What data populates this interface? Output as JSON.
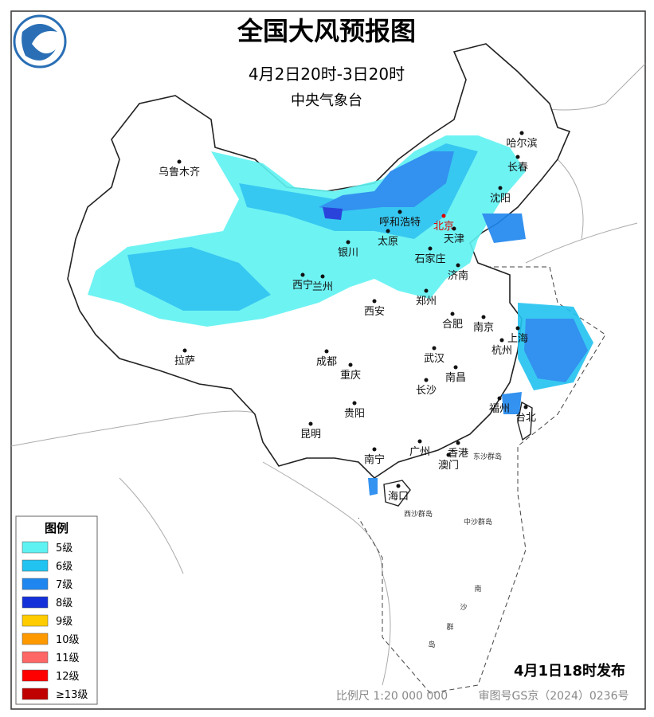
{
  "header": {
    "title": "全国大风预报图",
    "period": "4月2日20时-3日20时",
    "issuer": "中央气象台"
  },
  "cities": [
    {
      "name": "乌鲁木齐"
    },
    {
      "name": "哈尔滨"
    },
    {
      "name": "长春"
    },
    {
      "name": "沈阳"
    },
    {
      "name": "北京"
    },
    {
      "name": "呼和浩特"
    },
    {
      "name": "天津"
    },
    {
      "name": "太原"
    },
    {
      "name": "石家庄"
    },
    {
      "name": "银川"
    },
    {
      "name": "济南"
    },
    {
      "name": "西宁"
    },
    {
      "name": "兰州"
    },
    {
      "name": "郑州"
    },
    {
      "name": "西安"
    },
    {
      "name": "合肥"
    },
    {
      "name": "南京"
    },
    {
      "name": "上海"
    },
    {
      "name": "杭州"
    },
    {
      "name": "拉萨"
    },
    {
      "name": "成都"
    },
    {
      "name": "武汉"
    },
    {
      "name": "重庆"
    },
    {
      "name": "南昌"
    },
    {
      "name": "长沙"
    },
    {
      "name": "贵阳"
    },
    {
      "name": "福州"
    },
    {
      "name": "台北"
    },
    {
      "name": "昆明"
    },
    {
      "name": "南宁"
    },
    {
      "name": "广州"
    },
    {
      "name": "香港"
    },
    {
      "name": "澳门"
    },
    {
      "name": "海口"
    }
  ],
  "islands": [
    "东沙群岛",
    "西沙群岛",
    "中沙群岛",
    "南",
    "沙",
    "群",
    "岛"
  ],
  "legend": {
    "title": "图例",
    "items": [
      {
        "label": "5级",
        "color": "#5ff2f2"
      },
      {
        "label": "6级",
        "color": "#22c3f0"
      },
      {
        "label": "7级",
        "color": "#1e86ee"
      },
      {
        "label": "8级",
        "color": "#1430d8"
      },
      {
        "label": "9级",
        "color": "#ffcc00"
      },
      {
        "label": "10级",
        "color": "#ff9900"
      },
      {
        "label": "11级",
        "color": "#ff6666"
      },
      {
        "label": "12级",
        "color": "#ff0000"
      },
      {
        "label": "≥13级",
        "color": "#c00000"
      }
    ]
  },
  "footer": {
    "release": "4月1日18时发布",
    "scale": "比例尺 1:20 000 000",
    "approval": "审图号GS京（2024）0236号"
  }
}
